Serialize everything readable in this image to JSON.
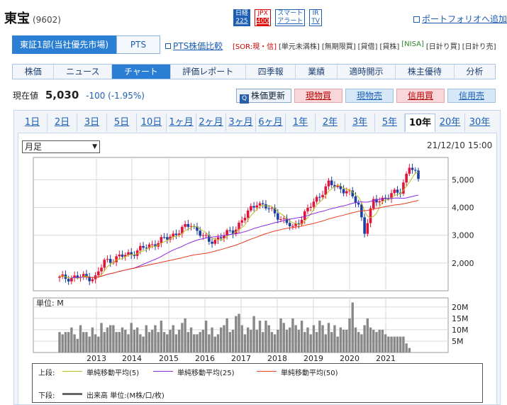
{
  "header": {
    "name": "東宝",
    "code": "(9602)",
    "badges": [
      {
        "l1": "日経",
        "l2": "225",
        "style": "blue"
      },
      {
        "l1": "JPX",
        "l2": "400",
        "style": "red"
      },
      {
        "l1": "スマート",
        "l2": "アラート",
        "style": "white"
      },
      {
        "l1": "IR",
        "l2": "TV",
        "style": "white"
      }
    ],
    "portfolio_link": "ポートフォリオへ追加"
  },
  "market_tabs": {
    "active": "東証1部(当社優先市場)",
    "pts": "PTS",
    "pts_compare": "PTS株価比較"
  },
  "flags": [
    "[SOR:現・信]",
    "[単元未満株]",
    "[無期限買]",
    "[貸借]",
    "[貸株]",
    "[NISA]",
    "[日計り買]",
    "[日計り売]"
  ],
  "nav": [
    "株価",
    "ニュース",
    "チャート",
    "評価レポート",
    "四季報",
    "業績",
    "適時開示",
    "株主優待",
    "分析"
  ],
  "nav_active": "チャート",
  "price": {
    "label": "現在値",
    "value": "5,030",
    "change": "-100 (-1.95%)"
  },
  "actions": {
    "refresh": "株価更新",
    "buy_cash": "現物買",
    "sell_cash": "現物売",
    "buy_margin": "信用買",
    "sell_margin": "信用売"
  },
  "periods": [
    "1日",
    "2日",
    "3日",
    "5日",
    "10日",
    "1ヶ月",
    "2ヶ月",
    "3ヶ月",
    "6ヶ月",
    "1年",
    "2年",
    "3年",
    "5年",
    "10年",
    "20年",
    "30年"
  ],
  "period_active": "10年",
  "chart_controls": {
    "interval": "月足",
    "timestamp": "21/12/10 15:00"
  },
  "colors": {
    "up": "#e0143c",
    "down": "#1d3fa0",
    "ma5": "#b8c020",
    "ma25": "#8a2be2",
    "ma50": "#e63c1e",
    "volume": "#888888"
  },
  "legend": {
    "upper_label": "上段:",
    "lower_label": "下段:",
    "ma5": "単純移動平均(5)",
    "ma25": "単純移動平均(25)",
    "ma50": "単純移動平均(50)",
    "volume": "出来高 単位:(M株/口/枚)"
  },
  "chart_data": [
    {
      "type": "candlestick",
      "title": "",
      "ylim": [
        1000,
        5800
      ],
      "yticks": [
        2000,
        3000,
        4000,
        5000
      ],
      "ytick_labels": [
        "2,000",
        "3,000",
        "4,000",
        "5,000"
      ],
      "x_year_labels": [
        "2013",
        "2014",
        "2015",
        "2016",
        "2017",
        "2018",
        "2019",
        "2020",
        "2021"
      ],
      "grid": true,
      "series": [
        {
          "name": "株価"
        },
        {
          "name": "単純移動平均(5)"
        },
        {
          "name": "単純移動平均(25)"
        },
        {
          "name": "単純移動平均(50)"
        }
      ],
      "close_anchors": [
        {
          "t": 0,
          "v": 1450
        },
        {
          "t": 6,
          "v": 1500
        },
        {
          "t": 12,
          "v": 1480
        },
        {
          "t": 15,
          "v": 2050
        },
        {
          "t": 24,
          "v": 2350
        },
        {
          "t": 36,
          "v": 2900
        },
        {
          "t": 44,
          "v": 3400
        },
        {
          "t": 50,
          "v": 2750
        },
        {
          "t": 58,
          "v": 3150
        },
        {
          "t": 66,
          "v": 4200
        },
        {
          "t": 72,
          "v": 3800
        },
        {
          "t": 78,
          "v": 3250
        },
        {
          "t": 90,
          "v": 4850
        },
        {
          "t": 96,
          "v": 4600
        },
        {
          "t": 100,
          "v": 4100
        },
        {
          "t": 102,
          "v": 3150
        },
        {
          "t": 105,
          "v": 4200
        },
        {
          "t": 110,
          "v": 4400
        },
        {
          "t": 114,
          "v": 4600
        },
        {
          "t": 117,
          "v": 5500
        },
        {
          "t": 120,
          "v": 5030
        }
      ],
      "ma5_end": 5000,
      "ma25_end": 4300,
      "ma50_end": 4150
    },
    {
      "type": "bar",
      "title": "",
      "ylabel": "単位: M",
      "ylim": [
        0,
        24
      ],
      "yticks": [
        5,
        10,
        15,
        20
      ],
      "ytick_labels": [
        "5M",
        "10M",
        "15M",
        "20M"
      ],
      "values": [
        9,
        8,
        9,
        9,
        11,
        8,
        6,
        12,
        9,
        9,
        7,
        11,
        8,
        7,
        13,
        9,
        11,
        12,
        12,
        9,
        9,
        11,
        10,
        8,
        13,
        10,
        11,
        8,
        7,
        12,
        9,
        10,
        12,
        9,
        14,
        9,
        8,
        10,
        12,
        8,
        10,
        13,
        15,
        9,
        11,
        8,
        8,
        9,
        10,
        14,
        8,
        11,
        7,
        8,
        11,
        12,
        15,
        9,
        10,
        16,
        17,
        12,
        8,
        11,
        10,
        16,
        10,
        14,
        9,
        14,
        12,
        9,
        8,
        10,
        15,
        13,
        10,
        11,
        15,
        12,
        10,
        14,
        9,
        11,
        8,
        12,
        9,
        14,
        12,
        8,
        13,
        9,
        12,
        7,
        11,
        10,
        10,
        15,
        22,
        11,
        9,
        8,
        12,
        15,
        11,
        10,
        9,
        10,
        10,
        8,
        7,
        7,
        7,
        7,
        7,
        7,
        4,
        2
      ]
    }
  ]
}
